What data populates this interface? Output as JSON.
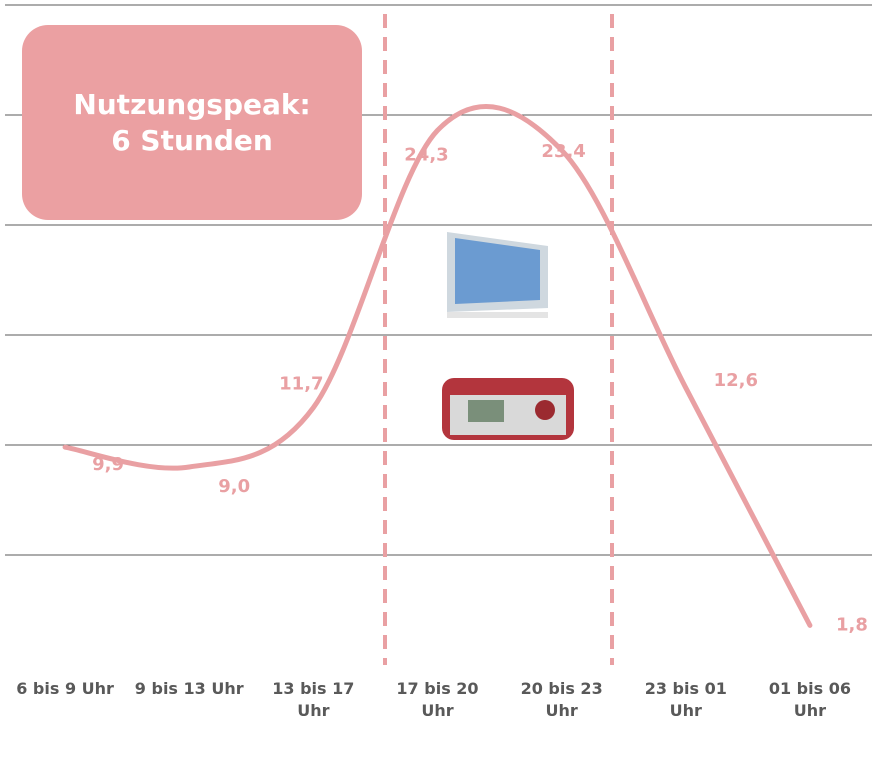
{
  "chart_data": {
    "type": "line",
    "annotation": [
      "Nutzungspeak:",
      "6 Stunden"
    ],
    "categories": [
      "6 bis 9 Uhr",
      "9 bis 13 Uhr",
      "13 bis 17 Uhr",
      "17 bis 20 Uhr",
      "20 bis 23 Uhr",
      "23 bis 01 Uhr",
      "01 bis 06 Uhr"
    ],
    "values": [
      9.9,
      9.0,
      11.7,
      24.3,
      23.4,
      12.6,
      1.8
    ],
    "value_labels": [
      "9,9",
      "9,0",
      "11,7",
      "24,3",
      "23,4",
      "12,6",
      "1,8"
    ],
    "color": "#e9a0a3",
    "ylim": [
      0,
      30
    ],
    "yticks": [
      5,
      10,
      15,
      20,
      25,
      30
    ],
    "grid": true
  }
}
